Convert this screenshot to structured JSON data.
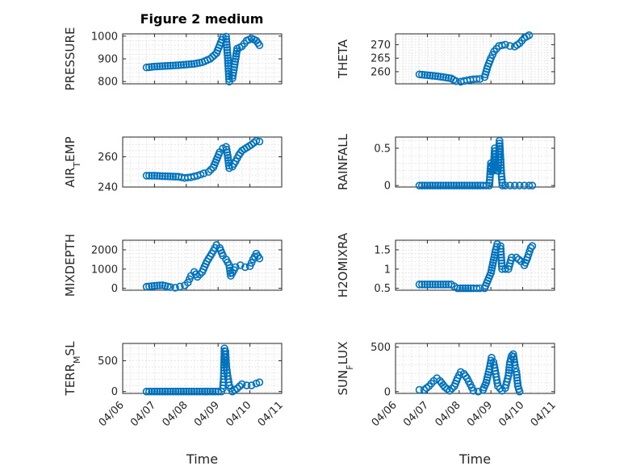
{
  "figure": {
    "title": "Figure 2 medium",
    "marker_color": "#0072BD"
  },
  "chart_data": [
    {
      "type": "scatter",
      "ylabel_html": "PRESSURE",
      "xlabel": "",
      "xticks": [
        "04/06",
        "04/07",
        "04/08",
        "04/09",
        "04/10",
        "04/11"
      ],
      "xticklabels_visible": false,
      "ylim": [
        790,
        1010
      ],
      "yticks": [
        800,
        900,
        1000
      ],
      "series": [
        {
          "points": [
            [
              0.75,
              862
            ],
            [
              1.0,
              866
            ],
            [
              1.25,
              868
            ],
            [
              1.5,
              870
            ],
            [
              1.75,
              872
            ],
            [
              2.0,
              875
            ],
            [
              2.25,
              878
            ],
            [
              2.5,
              885
            ],
            [
              2.75,
              900
            ],
            [
              2.95,
              925
            ],
            [
              3.05,
              960
            ],
            [
              3.15,
              995
            ],
            [
              3.25,
              998
            ],
            [
              3.3,
              915
            ],
            [
              3.35,
              800
            ],
            [
              3.45,
              815
            ],
            [
              3.55,
              900
            ],
            [
              3.6,
              945
            ],
            [
              3.75,
              955
            ],
            [
              3.9,
              980
            ],
            [
              4.05,
              990
            ],
            [
              4.2,
              980
            ],
            [
              4.3,
              960
            ]
          ]
        }
      ]
    },
    {
      "type": "scatter",
      "ylabel_html": "THETA",
      "xlabel": "",
      "xticks": [
        "04/06",
        "04/07",
        "04/08",
        "04/09",
        "04/10",
        "04/11"
      ],
      "xticklabels_visible": false,
      "ylim": [
        255.5,
        274
      ],
      "yticks": [
        260,
        265,
        270
      ],
      "series": [
        {
          "points": [
            [
              0.75,
              259
            ],
            [
              1.0,
              258.7
            ],
            [
              1.25,
              258.4
            ],
            [
              1.5,
              258
            ],
            [
              1.75,
              257.5
            ],
            [
              1.9,
              256.5
            ],
            [
              2.05,
              256.3
            ],
            [
              2.25,
              256.8
            ],
            [
              2.45,
              257.2
            ],
            [
              2.65,
              257.3
            ],
            [
              2.8,
              258
            ],
            [
              2.9,
              262
            ],
            [
              3.0,
              265
            ],
            [
              3.1,
              267.5
            ],
            [
              3.25,
              269.5
            ],
            [
              3.45,
              270
            ],
            [
              3.6,
              269.5
            ],
            [
              3.75,
              269.3
            ],
            [
              3.9,
              270.5
            ],
            [
              4.05,
              272.5
            ],
            [
              4.2,
              273.5
            ]
          ]
        }
      ]
    },
    {
      "type": "scatter",
      "ylabel_html": "AIR<tspan baseline-shift=\"sub\" font-size=\"11\">T</tspan>EMP",
      "xlabel": "",
      "xticks": [
        "04/06",
        "04/07",
        "04/08",
        "04/09",
        "04/10",
        "04/11"
      ],
      "xticklabels_visible": false,
      "ylim": [
        240,
        273
      ],
      "yticks": [
        240,
        260
      ],
      "series": [
        {
          "points": [
            [
              0.75,
              247.5
            ],
            [
              1.0,
              247.5
            ],
            [
              1.25,
              247.2
            ],
            [
              1.5,
              247
            ],
            [
              1.75,
              246.8
            ],
            [
              1.95,
              246
            ],
            [
              2.15,
              246.5
            ],
            [
              2.35,
              247.5
            ],
            [
              2.55,
              249
            ],
            [
              2.7,
              250
            ],
            [
              2.85,
              253
            ],
            [
              2.95,
              258
            ],
            [
              3.05,
              263
            ],
            [
              3.15,
              265.5
            ],
            [
              3.25,
              266.5
            ],
            [
              3.3,
              261
            ],
            [
              3.35,
              252.5
            ],
            [
              3.45,
              253.5
            ],
            [
              3.55,
              257
            ],
            [
              3.65,
              261
            ],
            [
              3.75,
              264
            ],
            [
              3.9,
              266
            ],
            [
              4.05,
              268
            ],
            [
              4.2,
              270.5
            ],
            [
              4.3,
              270
            ]
          ]
        }
      ]
    },
    {
      "type": "scatter",
      "ylabel_html": "RAINFALL",
      "xlabel": "",
      "xticks": [
        "04/06",
        "04/07",
        "04/08",
        "04/09",
        "04/10",
        "04/11"
      ],
      "xticklabels_visible": false,
      "ylim": [
        -0.02,
        0.65
      ],
      "yticks": [
        0,
        0.5
      ],
      "series": [
        {
          "points": [
            [
              0.75,
              0
            ],
            [
              1.0,
              0
            ],
            [
              1.25,
              0
            ],
            [
              1.5,
              0
            ],
            [
              1.75,
              0
            ],
            [
              2.0,
              0
            ],
            [
              2.25,
              0
            ],
            [
              2.5,
              0
            ],
            [
              2.75,
              0
            ],
            [
              2.95,
              0
            ],
            [
              3.0,
              0.3
            ],
            [
              3.03,
              0.2
            ],
            [
              3.08,
              0.2
            ],
            [
              3.12,
              0.5
            ],
            [
              3.15,
              0.3
            ],
            [
              3.18,
              0.2
            ],
            [
              3.22,
              0.2
            ],
            [
              3.27,
              0.6
            ],
            [
              3.32,
              0.2
            ],
            [
              3.36,
              0
            ],
            [
              3.45,
              0
            ],
            [
              3.6,
              0
            ],
            [
              3.75,
              0
            ],
            [
              3.9,
              0
            ],
            [
              4.05,
              0
            ],
            [
              4.2,
              0
            ],
            [
              4.3,
              0
            ]
          ]
        }
      ]
    },
    {
      "type": "scatter",
      "ylabel_html": "MIXDEPTH",
      "xlabel": "",
      "xticks": [
        "04/06",
        "04/07",
        "04/08",
        "04/09",
        "04/10",
        "04/11"
      ],
      "xticklabels_visible": false,
      "ylim": [
        -100,
        2500
      ],
      "yticks": [
        0,
        1000,
        2000
      ],
      "series": [
        {
          "points": [
            [
              0.75,
              80
            ],
            [
              1.0,
              130
            ],
            [
              1.25,
              160
            ],
            [
              1.5,
              60
            ],
            [
              1.65,
              30
            ],
            [
              1.8,
              90
            ],
            [
              1.95,
              150
            ],
            [
              2.05,
              300
            ],
            [
              2.15,
              650
            ],
            [
              2.25,
              850
            ],
            [
              2.35,
              600
            ],
            [
              2.5,
              850
            ],
            [
              2.65,
              1400
            ],
            [
              2.8,
              1800
            ],
            [
              2.95,
              2250
            ],
            [
              3.05,
              2100
            ],
            [
              3.15,
              1700
            ],
            [
              3.25,
              1500
            ],
            [
              3.35,
              1200
            ],
            [
              3.4,
              650
            ],
            [
              3.55,
              1100
            ],
            [
              3.7,
              1200
            ],
            [
              3.85,
              1100
            ],
            [
              4.0,
              1150
            ],
            [
              4.1,
              1500
            ],
            [
              4.2,
              1800
            ],
            [
              4.3,
              1550
            ]
          ]
        }
      ]
    },
    {
      "type": "scatter",
      "ylabel_html": "H2OMIXRA",
      "xlabel": "",
      "xticks": [
        "04/06",
        "04/07",
        "04/08",
        "04/09",
        "04/10",
        "04/11"
      ],
      "xticklabels_visible": false,
      "ylim": [
        0.45,
        1.75
      ],
      "yticks": [
        0.5,
        1,
        1.5
      ],
      "series": [
        {
          "points": [
            [
              0.75,
              0.6
            ],
            [
              1.0,
              0.6
            ],
            [
              1.25,
              0.6
            ],
            [
              1.5,
              0.6
            ],
            [
              1.75,
              0.6
            ],
            [
              1.95,
              0.5
            ],
            [
              2.2,
              0.5
            ],
            [
              2.45,
              0.5
            ],
            [
              2.65,
              0.5
            ],
            [
              2.8,
              0.5
            ],
            [
              2.9,
              0.7
            ],
            [
              3.0,
              0.9
            ],
            [
              3.05,
              1.1
            ],
            [
              3.1,
              1.3
            ],
            [
              3.15,
              1.5
            ],
            [
              3.2,
              1.65
            ],
            [
              3.3,
              1.6
            ],
            [
              3.35,
              1.0
            ],
            [
              3.45,
              1.0
            ],
            [
              3.55,
              1.0
            ],
            [
              3.65,
              1.3
            ],
            [
              3.8,
              1.3
            ],
            [
              3.95,
              1.2
            ],
            [
              4.05,
              1.1
            ],
            [
              4.15,
              1.3
            ],
            [
              4.25,
              1.55
            ],
            [
              4.3,
              1.6
            ]
          ]
        }
      ]
    },
    {
      "type": "scatter",
      "ylabel_html": "TERR<tspan baseline-shift=\"sub\" font-size=\"11\">M</tspan>SL",
      "xlabel": "Time",
      "xticks": [
        "04/06",
        "04/07",
        "04/08",
        "04/09",
        "04/10",
        "04/11"
      ],
      "xticklabels_visible": true,
      "ylim": [
        -30,
        780
      ],
      "yticks": [
        0,
        500
      ],
      "series": [
        {
          "points": [
            [
              0.75,
              0
            ],
            [
              1.0,
              0
            ],
            [
              1.25,
              0
            ],
            [
              1.5,
              0
            ],
            [
              1.75,
              0
            ],
            [
              2.0,
              0
            ],
            [
              2.25,
              0
            ],
            [
              2.5,
              0
            ],
            [
              2.75,
              0
            ],
            [
              3.0,
              0
            ],
            [
              3.1,
              0
            ],
            [
              3.15,
              50
            ],
            [
              3.18,
              250
            ],
            [
              3.2,
              700
            ],
            [
              3.23,
              650
            ],
            [
              3.26,
              400
            ],
            [
              3.3,
              250
            ],
            [
              3.35,
              100
            ],
            [
              3.45,
              0
            ],
            [
              3.6,
              50
            ],
            [
              3.75,
              120
            ],
            [
              3.9,
              100
            ],
            [
              4.05,
              100
            ],
            [
              4.2,
              130
            ],
            [
              4.3,
              150
            ]
          ]
        }
      ]
    },
    {
      "type": "scatter",
      "ylabel_html": "SUN<tspan baseline-shift=\"sub\" font-size=\"11\">F</tspan>LUX",
      "xlabel": "Time",
      "xticks": [
        "04/06",
        "04/07",
        "04/08",
        "04/09",
        "04/10",
        "04/11"
      ],
      "xticklabels_visible": true,
      "ylim": [
        -20,
        540
      ],
      "yticks": [
        0,
        500
      ],
      "series": [
        {
          "points": [
            [
              0.75,
              20
            ],
            [
              0.9,
              20
            ],
            [
              1.05,
              60
            ],
            [
              1.2,
              120
            ],
            [
              1.3,
              150
            ],
            [
              1.4,
              120
            ],
            [
              1.55,
              50
            ],
            [
              1.7,
              10
            ],
            [
              1.85,
              60
            ],
            [
              1.95,
              150
            ],
            [
              2.05,
              220
            ],
            [
              2.15,
              200
            ],
            [
              2.25,
              150
            ],
            [
              2.35,
              80
            ],
            [
              2.45,
              10
            ],
            [
              2.6,
              0
            ],
            [
              2.75,
              20
            ],
            [
              2.85,
              100
            ],
            [
              2.95,
              250
            ],
            [
              3.02,
              380
            ],
            [
              3.08,
              330
            ],
            [
              3.15,
              200
            ],
            [
              3.22,
              60
            ],
            [
              3.35,
              10
            ],
            [
              3.45,
              40
            ],
            [
              3.55,
              180
            ],
            [
              3.6,
              330
            ],
            [
              3.65,
              400
            ],
            [
              3.7,
              420
            ],
            [
              3.75,
              300
            ],
            [
              3.8,
              220
            ],
            [
              3.85,
              60
            ],
            [
              3.9,
              0
            ]
          ]
        }
      ]
    }
  ]
}
